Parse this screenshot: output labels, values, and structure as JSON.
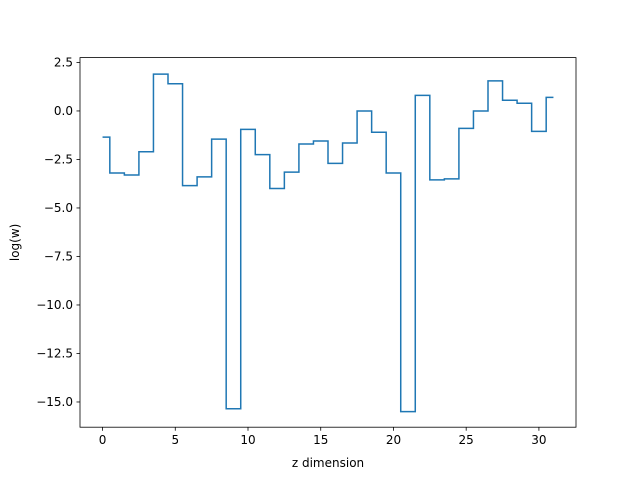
{
  "chart_data": {
    "type": "line",
    "drawstyle": "steps-mid",
    "title": "",
    "xlabel": "z dimension",
    "ylabel": "log(w)",
    "xlim": [
      -1.55,
      32.55
    ],
    "ylim": [
      -16.3,
      2.75
    ],
    "grid": false,
    "line_color": "#1f77b4",
    "x_ticks": [
      0,
      5,
      10,
      15,
      20,
      25,
      30
    ],
    "x_tick_labels": [
      "0",
      "5",
      "10",
      "15",
      "20",
      "25",
      "30"
    ],
    "y_ticks": [
      2.5,
      0.0,
      -2.5,
      -5.0,
      -7.5,
      -10.0,
      -12.5,
      -15.0
    ],
    "y_tick_labels": [
      "2.5",
      "0.0",
      "−2.5",
      "−5.0",
      "−7.5",
      "−10.0",
      "−12.5",
      "−15.0"
    ],
    "series": [
      {
        "x": [
          0,
          1,
          2,
          3,
          4,
          5,
          6,
          7,
          8,
          9,
          10,
          11,
          12,
          13,
          14,
          15,
          16,
          17,
          18,
          19,
          20,
          21,
          22,
          23,
          24,
          25,
          26,
          27,
          28,
          29,
          30,
          31
        ],
        "values": [
          -1.35,
          -3.2,
          -3.3,
          -2.1,
          1.9,
          1.4,
          -3.85,
          -3.4,
          -1.45,
          -15.35,
          -0.95,
          -2.25,
          -4.0,
          -3.15,
          -1.7,
          -1.55,
          -2.7,
          -1.65,
          0.0,
          -1.1,
          -3.2,
          -15.5,
          0.8,
          -3.55,
          -3.5,
          -0.9,
          0.0,
          1.55,
          0.55,
          0.4,
          -1.05,
          0.7
        ]
      }
    ]
  }
}
